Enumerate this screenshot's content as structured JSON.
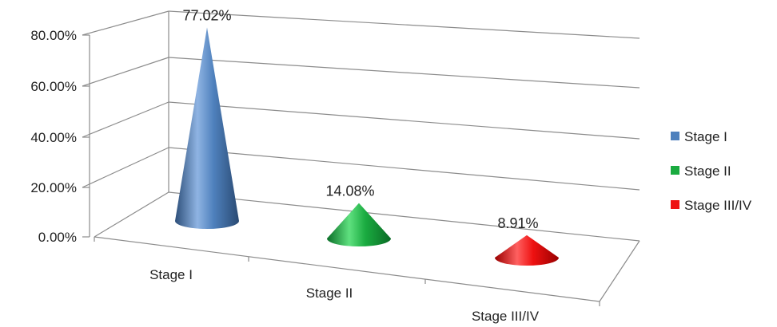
{
  "chart_data": {
    "type": "bar",
    "variant": "3d-cone",
    "categories": [
      "Stage I",
      "Stage II",
      "Stage III/IV"
    ],
    "values": [
      77.02,
      14.08,
      8.91
    ],
    "data_labels": [
      "77.02%",
      "14.08%",
      "8.91%"
    ],
    "ylim": [
      0,
      80
    ],
    "yticks": [
      0,
      20,
      40,
      60,
      80
    ],
    "ytick_labels": [
      "0.00%",
      "20.00%",
      "40.00%",
      "60.00%",
      "80.00%"
    ],
    "grid": true,
    "legend": {
      "placement": "right",
      "entries": [
        {
          "label": "Stage I",
          "color": "#4f81bd"
        },
        {
          "label": "Stage II",
          "color": "#1aab40"
        },
        {
          "label": "Stage III/IV",
          "color": "#ee1111"
        }
      ]
    },
    "title": "",
    "xlabel": "",
    "ylabel": ""
  }
}
